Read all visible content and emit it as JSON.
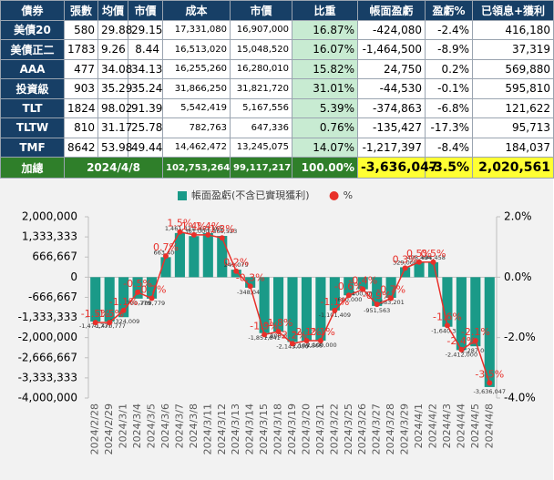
{
  "table": {
    "header": [
      "債券",
      "張數",
      "均價",
      "市價",
      "成本",
      "市價",
      "比重",
      "帳面盈虧",
      "盈虧%",
      "已領息+獲利"
    ],
    "rows": [
      [
        "美債20",
        "580",
        "29.88",
        "29.15",
        "17,331,080",
        "16,907,000",
        "16.87%",
        "-424,080",
        "-2.4%",
        "416,180"
      ],
      [
        "美債正二",
        "1783",
        "9.26",
        "8.44",
        "16,513,020",
        "15,048,520",
        "16.07%",
        "-1,464,500",
        "-8.9%",
        "37,319"
      ],
      [
        "AAA",
        "477",
        "34.08",
        "34.13",
        "16,255,260",
        "16,280,010",
        "15.82%",
        "24,750",
        "0.2%",
        "569,880"
      ],
      [
        "投資級",
        "903",
        "35.29",
        "35.24",
        "31,866,250",
        "31,821,720",
        "31.01%",
        "-44,530",
        "-0.1%",
        "595,810"
      ],
      [
        "TLT",
        "1824",
        "98.02",
        "91.39",
        "5,542,419",
        "5,167,556",
        "5.39%",
        "-374,863",
        "-6.8%",
        "121,622"
      ],
      [
        "TLTW",
        "810",
        "31.17",
        "25.78",
        "782,763",
        "647,336",
        "0.76%",
        "-135,427",
        "-17.3%",
        "95,713"
      ],
      [
        "TMF",
        "8642",
        "53.98",
        "49.44",
        "14,462,472",
        "13,245,075",
        "14.07%",
        "-1,217,397",
        "-8.4%",
        "184,037"
      ]
    ],
    "total": [
      "加總",
      "2024/4/8",
      "102,753,264",
      "99,117,217",
      "100.00%",
      "-3,636,047",
      "-3.5%",
      "2,020,561"
    ]
  },
  "chart_data": {
    "type": "bar",
    "categories": [
      "2024/2/28",
      "2024/2/29",
      "2024/3/1",
      "2024/3/4",
      "2024/3/5",
      "2024/3/6",
      "2024/3/7",
      "2024/3/8",
      "2024/3/11",
      "2024/3/12",
      "2024/3/13",
      "2024/3/14",
      "2024/3/15",
      "2024/3/18",
      "2024/3/19",
      "2024/3/20",
      "2024/3/21",
      "2024/3/22",
      "2024/3/25",
      "2024/3/26",
      "2024/3/27",
      "2024/3/28",
      "2024/3/29",
      "2024/4/1",
      "2024/4/2",
      "2024/4/3",
      "2024/4/4",
      "2024/4/5",
      "2024/4/8"
    ],
    "series": [
      {
        "name": "帳面盈虧(不含已實現獲利)",
        "type": "bar",
        "color": "#1a9a88",
        "values": [
          -1470777,
          -1470777,
          -1324009,
          -709779,
          -709779,
          663400,
          1461421,
          1361000,
          1457165,
          1365523,
          249079,
          -348047,
          -1851841,
          -1800000,
          -2143000,
          -2109868,
          -2100000,
          -1101409,
          -600000,
          -400000,
          -951563,
          -683201,
          329000,
          498494,
          494458,
          -1640342,
          -2412000,
          -2287000,
          -3636047
        ],
        "value_labels": [
          "-1,470,777",
          "-1,470,777",
          "-1,324,009",
          "-709,779",
          "-709,779",
          "663,400",
          "1,461,421",
          "1,361,000",
          "1,457,165",
          "1,365,523",
          "249,079",
          "-348,047",
          "-1,851,841",
          "-1,800,000",
          "-2,143,000",
          "-2,109,868",
          "-2,100,000",
          "-1,101,409",
          "-600,000",
          "-400,000",
          "-951,563",
          "-683,201",
          "329,000",
          "498,494",
          "494,458",
          "-1,640,342",
          "-2,412,000",
          "-2,287,000",
          "-3,636,047"
        ]
      },
      {
        "name": "%",
        "type": "line",
        "axis": "y2",
        "color": "#e8302a",
        "values": [
          -1.5,
          -1.5,
          -1.1,
          -0.5,
          -0.7,
          0.7,
          1.5,
          1.4,
          1.4,
          1.3,
          0.2,
          -0.3,
          -1.9,
          -1.8,
          -2.2,
          -2.1,
          -2.1,
          -1.1,
          -0.6,
          -0.4,
          -0.9,
          -0.7,
          0.3,
          0.5,
          0.5,
          -1.6,
          -2.4,
          -2.1,
          -3.5
        ],
        "value_labels": [
          "-1.5%",
          "-1.5%",
          "-1.1%",
          "-0.5%",
          "-0.7%",
          "0.7%",
          "1.5%",
          "1.4%",
          "1.4%",
          "1.3%",
          "0.2%",
          "-0.3%",
          "-1.9%",
          "-1.8%",
          "-2.2%",
          "-2.1%",
          "-2.1%",
          "-1.1%",
          "-0.6%",
          "-0.4%",
          "-0.9%",
          "-0.7%",
          "0.3%",
          "0.5%",
          "0.5%",
          "-1.6%",
          "-2.4%",
          "-2.1%",
          "-3.5%"
        ]
      }
    ],
    "ylim": [
      -4000000,
      2000000
    ],
    "yticks": [
      {
        "value": -4000000,
        "label": "-4,000,000"
      },
      {
        "value": -3333333,
        "label": "-3,333,333"
      },
      {
        "value": -2666667,
        "label": "-2,666,667"
      },
      {
        "value": -2000000,
        "label": "-2,000,000"
      },
      {
        "value": -1333333,
        "label": "-1,333,333"
      },
      {
        "value": -666667,
        "label": "-666,667"
      },
      0,
      {
        "value": 666667,
        "label": "666,667"
      },
      {
        "value": 1333333,
        "label": "1,333,333"
      },
      {
        "value": 2000000,
        "label": "2,000,000"
      }
    ],
    "y2lim": [
      -4,
      2
    ],
    "y2ticks": [
      {
        "value": -4,
        "label": "-4.0%"
      },
      {
        "value": -2,
        "label": "-2.0%"
      },
      {
        "value": 0,
        "label": "0.0%"
      },
      {
        "value": 2,
        "label": "2.0%"
      }
    ],
    "grid": false,
    "legend": "top"
  }
}
